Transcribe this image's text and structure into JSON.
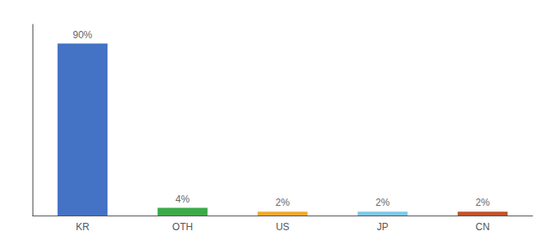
{
  "chart_data": {
    "type": "bar",
    "categories": [
      "KR",
      "OTH",
      "US",
      "JP",
      "CN"
    ],
    "values": [
      90,
      4,
      2,
      2,
      2
    ],
    "value_labels": [
      "90%",
      "4%",
      "2%",
      "2%",
      "2%"
    ],
    "colors": [
      "#4472c4",
      "#3daa4a",
      "#f0a830",
      "#7ec8e3",
      "#c0522a"
    ],
    "data_labels": true,
    "ylim": [
      0,
      100
    ],
    "tick_labels": "x",
    "grid": false
  }
}
